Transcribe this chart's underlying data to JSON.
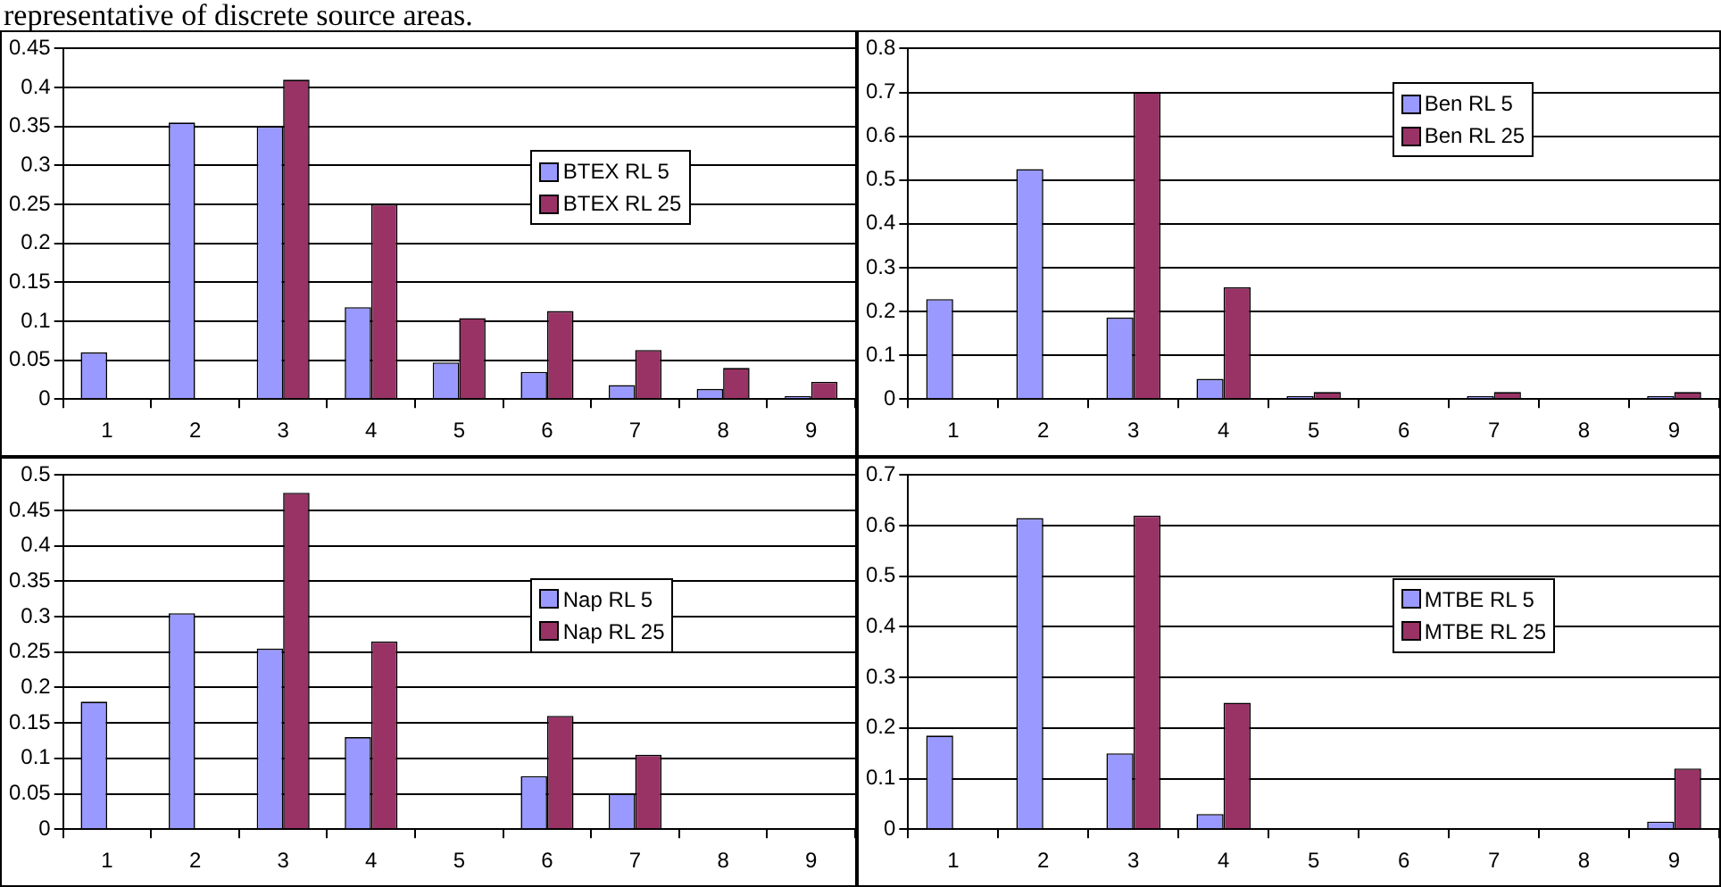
{
  "chart_data": [
    {
      "type": "bar",
      "annotations": [
        "representative of discrete source areas."
      ],
      "categories": [
        "1",
        "2",
        "3",
        "4",
        "5",
        "6",
        "7",
        "8",
        "9"
      ],
      "ylim": [
        0,
        0.45
      ],
      "yticks": [
        0,
        0.05,
        0.1,
        0.15,
        0.2,
        0.25,
        0.3,
        0.35,
        0.4,
        0.45
      ],
      "grid": "y",
      "legend": "right",
      "series": [
        {
          "name": "BTEX RL 5",
          "color": "#9999ff",
          "values": [
            0.06,
            0.355,
            0.35,
            0.118,
            0.047,
            0.035,
            0.018,
            0.013,
            0.004
          ]
        },
        {
          "name": "BTEX RL 25",
          "color": "#993366",
          "values": [
            0,
            0,
            0.41,
            0.25,
            0.104,
            0.113,
            0.063,
            0.04,
            0.022
          ]
        }
      ]
    },
    {
      "type": "bar",
      "categories": [
        "1",
        "2",
        "3",
        "4",
        "5",
        "6",
        "7",
        "8",
        "9"
      ],
      "ylim": [
        0,
        0.8
      ],
      "yticks": [
        0,
        0.1,
        0.2,
        0.3,
        0.4,
        0.5,
        0.6,
        0.7,
        0.8
      ],
      "grid": "y",
      "legend": "top right",
      "series": [
        {
          "name": "Ben RL 5",
          "color": "#9999ff",
          "values": [
            0.228,
            0.525,
            0.186,
            0.046,
            0.007,
            0,
            0.007,
            0,
            0.007
          ]
        },
        {
          "name": "Ben RL 25",
          "color": "#993366",
          "values": [
            0,
            0,
            0.7,
            0.255,
            0.016,
            0,
            0.016,
            0,
            0.016
          ]
        }
      ]
    },
    {
      "type": "bar",
      "categories": [
        "1",
        "2",
        "3",
        "4",
        "5",
        "6",
        "7",
        "8",
        "9"
      ],
      "ylim": [
        0,
        0.5
      ],
      "yticks": [
        0,
        0.05,
        0.1,
        0.15,
        0.2,
        0.25,
        0.3,
        0.35,
        0.4,
        0.45,
        0.5
      ],
      "grid": "y",
      "legend": "right",
      "series": [
        {
          "name": "Nap RL 5",
          "color": "#9999ff",
          "values": [
            0.18,
            0.305,
            0.255,
            0.13,
            0,
            0.075,
            0.05,
            0,
            0
          ]
        },
        {
          "name": "Nap RL 25",
          "color": "#993366",
          "values": [
            0,
            0,
            0.475,
            0.265,
            0,
            0.16,
            0.105,
            0,
            0
          ]
        }
      ]
    },
    {
      "type": "bar",
      "categories": [
        "1",
        "2",
        "3",
        "4",
        "5",
        "6",
        "7",
        "8",
        "9"
      ],
      "ylim": [
        0,
        0.7
      ],
      "yticks": [
        0,
        0.1,
        0.2,
        0.3,
        0.4,
        0.5,
        0.6,
        0.7
      ],
      "grid": "y",
      "legend": "right",
      "series": [
        {
          "name": "MTBE RL 5",
          "color": "#9999ff",
          "values": [
            0.185,
            0.615,
            0.15,
            0.03,
            0,
            0,
            0,
            0,
            0.015
          ]
        },
        {
          "name": "MTBE RL 25",
          "color": "#993366",
          "values": [
            0,
            0,
            0.62,
            0.25,
            0,
            0,
            0,
            0,
            0.12
          ]
        }
      ]
    }
  ]
}
